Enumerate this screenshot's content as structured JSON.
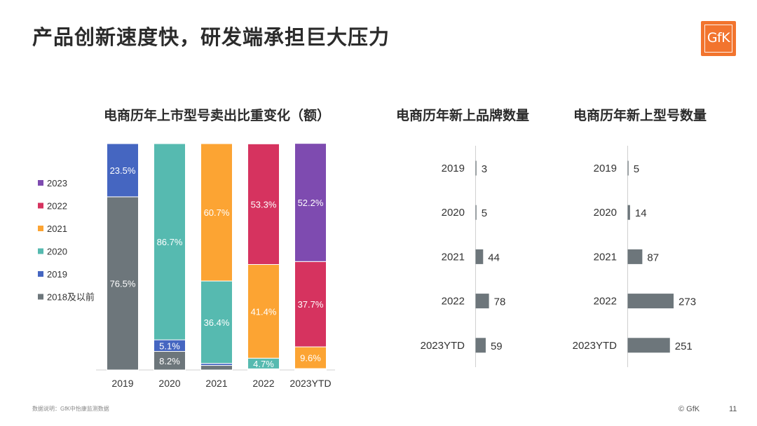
{
  "title": "产品创新速度快，研发端承担巨大压力",
  "logo_text": "GfK",
  "colors": {
    "2018及以前": "#6d767b",
    "2019": "#4566c1",
    "2020": "#56bab0",
    "2021": "#fca433",
    "2022": "#d6335f",
    "2023": "#7e4bb0",
    "bar_grey": "#6d767b"
  },
  "chart_data": [
    {
      "type": "bar",
      "stacked": true,
      "title": "电商历年上市型号卖出比重变化（额）",
      "categories": [
        "2019",
        "2020",
        "2021",
        "2022",
        "2023YTD"
      ],
      "ylim": [
        0,
        100
      ],
      "legend_position": "left",
      "series": [
        {
          "name": "2018及以前",
          "values": [
            76.5,
            8.2,
            2.0,
            0.3,
            0.2
          ],
          "labels": [
            "76.5%",
            "8.2%",
            "",
            "",
            ""
          ]
        },
        {
          "name": "2019",
          "values": [
            23.5,
            5.1,
            0.9,
            0.2,
            0.1
          ],
          "labels": [
            "23.5%",
            "5.1%",
            "",
            "",
            ""
          ]
        },
        {
          "name": "2020",
          "values": [
            0,
            86.7,
            36.4,
            4.7,
            0.3
          ],
          "labels": [
            "",
            "86.7%",
            "36.4%",
            "4.7%",
            ""
          ]
        },
        {
          "name": "2021",
          "values": [
            0,
            0,
            60.7,
            41.4,
            9.6
          ],
          "labels": [
            "",
            "",
            "60.7%",
            "41.4%",
            "9.6%"
          ]
        },
        {
          "name": "2022",
          "values": [
            0,
            0,
            0,
            53.3,
            37.7
          ],
          "labels": [
            "",
            "",
            "",
            "53.3%",
            "37.7%"
          ]
        },
        {
          "name": "2023",
          "values": [
            0,
            0,
            0,
            0,
            52.2
          ],
          "labels": [
            "",
            "",
            "",
            "",
            "52.2%"
          ]
        }
      ],
      "legend": [
        "2023",
        "2022",
        "2021",
        "2020",
        "2019",
        "2018及以前"
      ]
    },
    {
      "type": "bar",
      "orientation": "horizontal",
      "title": "电商历年新上品牌数量",
      "categories": [
        "2019",
        "2020",
        "2021",
        "2022",
        "2023YTD"
      ],
      "values": [
        3,
        5,
        44,
        78,
        59
      ],
      "xlim": [
        0,
        300
      ]
    },
    {
      "type": "bar",
      "orientation": "horizontal",
      "title": "电商历年新上型号数量",
      "categories": [
        "2019",
        "2020",
        "2021",
        "2022",
        "2023YTD"
      ],
      "values": [
        5,
        14,
        87,
        273,
        251
      ],
      "xlim": [
        0,
        300
      ]
    }
  ],
  "footer": {
    "note": "数据说明：GfK中怡康监测数据",
    "copyright": "© GfK",
    "page": "11"
  }
}
